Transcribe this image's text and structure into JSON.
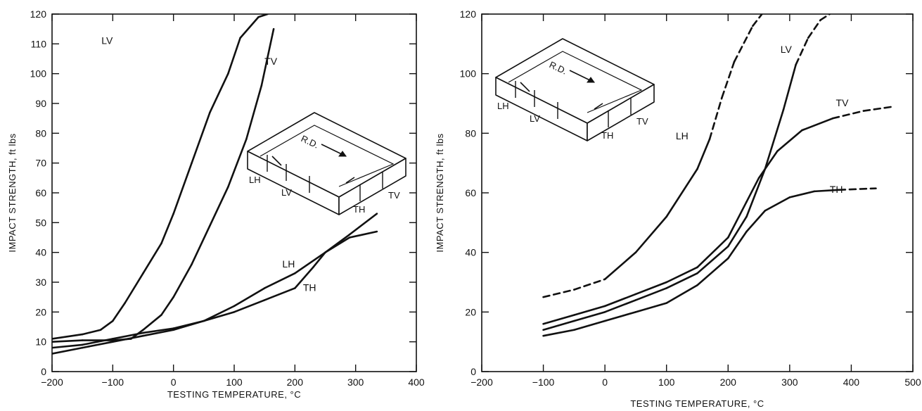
{
  "chart_data": [
    {
      "type": "line",
      "xlabel": "TESTING TEMPERATURE, °C",
      "ylabel": "IMPACT STRENGTH, ft lbs",
      "xlim": [
        -200,
        400
      ],
      "ylim": [
        0,
        120
      ],
      "x_ticks": [
        "-200",
        "-100",
        "0",
        "100",
        "200",
        "300",
        "400"
      ],
      "y_ticks": [
        "0",
        "10",
        "20",
        "30",
        "40",
        "50",
        "60",
        "70",
        "80",
        "90",
        "100",
        "110",
        "120"
      ],
      "grid": false,
      "specimen_labels": {
        "rd": "R.D.",
        "lh": "LH",
        "lv": "LV",
        "th": "TH",
        "tv": "TV"
      },
      "series": [
        {
          "name": "LV",
          "points": [
            [
              -200,
              11
            ],
            [
              -150,
              12.5
            ],
            [
              -120,
              14
            ],
            [
              -100,
              17
            ],
            [
              -80,
              23
            ],
            [
              -50,
              33
            ],
            [
              -20,
              43
            ],
            [
              0,
              53
            ],
            [
              30,
              70
            ],
            [
              60,
              87
            ],
            [
              90,
              100
            ],
            [
              110,
              112
            ],
            [
              140,
              119
            ],
            [
              155,
              120
            ]
          ]
        },
        {
          "name": "TV",
          "points": [
            [
              -200,
              10
            ],
            [
              -150,
              10.5
            ],
            [
              -100,
              10.5
            ],
            [
              -70,
              11
            ],
            [
              -50,
              14
            ],
            [
              -20,
              19
            ],
            [
              0,
              25
            ],
            [
              30,
              36
            ],
            [
              60,
              49
            ],
            [
              90,
              62
            ],
            [
              120,
              78
            ],
            [
              145,
              96
            ],
            [
              165,
              115
            ]
          ]
        },
        {
          "name": "LH",
          "points": [
            [
              -200,
              6
            ],
            [
              -150,
              8
            ],
            [
              -100,
              10
            ],
            [
              -50,
              12
            ],
            [
              0,
              14
            ],
            [
              50,
              17
            ],
            [
              100,
              22
            ],
            [
              150,
              28
            ],
            [
              200,
              33
            ],
            [
              250,
              40
            ],
            [
              290,
              45
            ],
            [
              335,
              47
            ]
          ]
        },
        {
          "name": "TH",
          "points": [
            [
              -200,
              8
            ],
            [
              -150,
              9
            ],
            [
              -100,
              11
            ],
            [
              -50,
              13
            ],
            [
              0,
              14.5
            ],
            [
              50,
              17
            ],
            [
              100,
              20
            ],
            [
              150,
              24
            ],
            [
              200,
              28
            ],
            [
              230,
              35
            ],
            [
              250,
              40
            ],
            [
              290,
              46
            ],
            [
              335,
              53
            ]
          ]
        }
      ]
    },
    {
      "type": "line",
      "xlabel": "TESTING TEMPERATURE, °C",
      "ylabel": "IMPACT STRENGTH, ft lbs",
      "xlim": [
        -200,
        500
      ],
      "ylim": [
        0,
        120
      ],
      "x_ticks": [
        "-200",
        "-100",
        "0",
        "100",
        "200",
        "300",
        "400",
        "500"
      ],
      "y_ticks": [
        "0",
        "20",
        "40",
        "60",
        "80",
        "100",
        "120"
      ],
      "grid": false,
      "specimen_labels": {
        "rd": "R.D.",
        "lh": "LH",
        "lv": "LV",
        "th": "TH",
        "tv": "TV"
      },
      "series": [
        {
          "name": "LH",
          "points": [
            [
              -100,
              25
            ],
            [
              -50,
              27.5
            ],
            [
              0,
              31
            ],
            [
              50,
              40
            ],
            [
              100,
              52
            ],
            [
              150,
              68
            ],
            [
              170,
              78
            ],
            [
              190,
              92
            ],
            [
              210,
              104
            ],
            [
              240,
              116
            ],
            [
              255,
              120
            ]
          ],
          "dashed_x": [
            [
              -100,
              0
            ],
            [
              170,
              255
            ]
          ]
        },
        {
          "name": "LV",
          "points": [
            [
              -100,
              14
            ],
            [
              -50,
              17
            ],
            [
              0,
              20
            ],
            [
              50,
              24
            ],
            [
              100,
              28
            ],
            [
              150,
              33
            ],
            [
              200,
              42
            ],
            [
              230,
              52
            ],
            [
              260,
              68
            ],
            [
              290,
              88
            ],
            [
              310,
              103
            ],
            [
              330,
              112
            ],
            [
              350,
              118
            ],
            [
              365,
              120
            ]
          ],
          "dashed_x": [
            [
              310,
              365
            ]
          ]
        },
        {
          "name": "TV",
          "points": [
            [
              -100,
              16
            ],
            [
              -50,
              19
            ],
            [
              0,
              22
            ],
            [
              50,
              26
            ],
            [
              100,
              30
            ],
            [
              150,
              35
            ],
            [
              200,
              45
            ],
            [
              230,
              57
            ],
            [
              250,
              65
            ],
            [
              280,
              74
            ],
            [
              320,
              81
            ],
            [
              370,
              85
            ],
            [
              420,
              87.5
            ],
            [
              470,
              89
            ]
          ],
          "dashed_x": [
            [
              370,
              470
            ]
          ]
        },
        {
          "name": "TH",
          "points": [
            [
              -100,
              12
            ],
            [
              -50,
              14
            ],
            [
              0,
              17
            ],
            [
              50,
              20
            ],
            [
              100,
              23
            ],
            [
              150,
              29
            ],
            [
              200,
              38
            ],
            [
              230,
              47
            ],
            [
              260,
              54
            ],
            [
              300,
              58.5
            ],
            [
              340,
              60.5
            ],
            [
              380,
              61
            ],
            [
              440,
              61.5
            ]
          ],
          "dashed_x": [
            [
              370,
              440
            ]
          ]
        }
      ]
    }
  ]
}
